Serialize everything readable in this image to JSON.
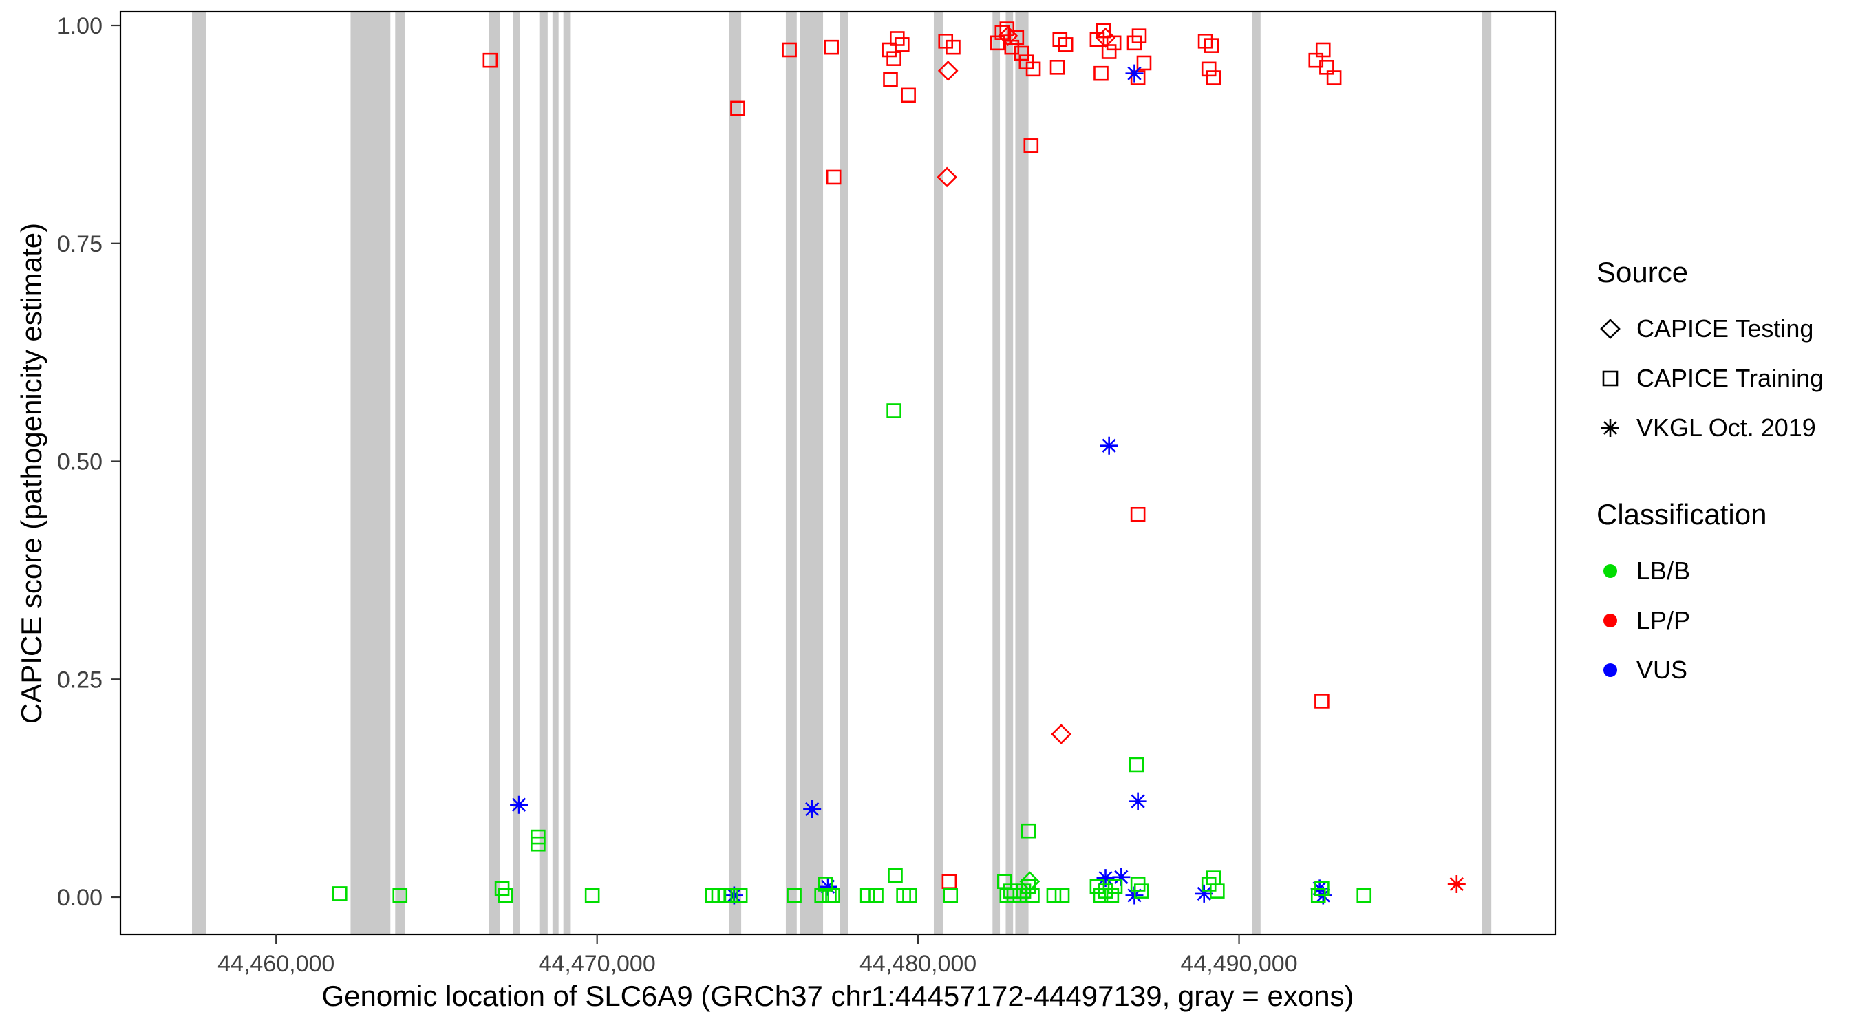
{
  "legend": {
    "source": {
      "title": "Source",
      "items": [
        {
          "label": "CAPICE Testing",
          "shape": "diamond"
        },
        {
          "label": "CAPICE Training",
          "shape": "square"
        },
        {
          "label": "VKGL Oct. 2019",
          "shape": "asterisk"
        }
      ]
    },
    "classification": {
      "title": "Classification",
      "items": [
        {
          "label": "LB/B",
          "color": "#00dd00"
        },
        {
          "label": "LP/P",
          "color": "#ff0000"
        },
        {
          "label": "VUS",
          "color": "#0000ff"
        }
      ]
    }
  },
  "chart_data": {
    "type": "scatter",
    "title": "",
    "xlabel": "Genomic location of SLC6A9 (GRCh37 chr1:44457172-44497139, gray = exons)",
    "ylabel": "CAPICE score (pathogenicity estimate)",
    "xlim": [
      44455150,
      44499850
    ],
    "ylim": [
      0,
      1
    ],
    "x_ticks": [
      {
        "value": 44460000,
        "label": "44,460,000"
      },
      {
        "value": 44470000,
        "label": "44,470,000"
      },
      {
        "value": 44480000,
        "label": "44,480,000"
      },
      {
        "value": 44490000,
        "label": "44,490,000"
      }
    ],
    "y_ticks": [
      {
        "value": 0.0,
        "label": "0.00"
      },
      {
        "value": 0.25,
        "label": "0.25"
      },
      {
        "value": 0.5,
        "label": "0.50"
      },
      {
        "value": 0.75,
        "label": "0.75"
      },
      {
        "value": 1.0,
        "label": "1.00"
      }
    ],
    "exon_color": "#c9c9c9",
    "exons": [
      [
        44457380,
        44457830
      ],
      [
        44462320,
        44463560
      ],
      [
        44463710,
        44464010
      ],
      [
        44466630,
        44466970
      ],
      [
        44467380,
        44467600
      ],
      [
        44468200,
        44468460
      ],
      [
        44468610,
        44468800
      ],
      [
        44468950,
        44469180
      ],
      [
        44474120,
        44474490
      ],
      [
        44475880,
        44476220
      ],
      [
        44476330,
        44477040
      ],
      [
        44477560,
        44477830
      ],
      [
        44480490,
        44480790
      ],
      [
        44482320,
        44482550
      ],
      [
        44482730,
        44482960
      ],
      [
        44483030,
        44483440
      ],
      [
        44490410,
        44490670
      ],
      [
        44497560,
        44497860
      ]
    ],
    "marker_colors": {
      "g": "#00dd00",
      "r": "#ff0000",
      "b": "#0000ff"
    },
    "marker_shapes": {
      "d": "diamond = CAPICE Testing",
      "s": "square = CAPICE Training",
      "a": "asterisk = VKGL Oct. 2019"
    },
    "point_format": [
      "x",
      "y",
      "shape",
      "classification(g=LB/B,r=LP/P,b=VUS)"
    ],
    "points": [
      [
        44466670,
        0.96,
        "s",
        "r"
      ],
      [
        44474380,
        0.905,
        "s",
        "r"
      ],
      [
        44475990,
        0.972,
        "s",
        "r"
      ],
      [
        44477300,
        0.975,
        "s",
        "r"
      ],
      [
        44477375,
        0.826,
        "s",
        "r"
      ],
      [
        44479100,
        0.972,
        "s",
        "r"
      ],
      [
        44479350,
        0.985,
        "s",
        "r"
      ],
      [
        44479500,
        0.978,
        "s",
        "r"
      ],
      [
        44479140,
        0.938,
        "s",
        "r"
      ],
      [
        44479700,
        0.92,
        "s",
        "r"
      ],
      [
        44479250,
        0.962,
        "s",
        "r"
      ],
      [
        44480860,
        0.982,
        "s",
        "r"
      ],
      [
        44481090,
        0.975,
        "s",
        "r"
      ],
      [
        44482470,
        0.98,
        "s",
        "r"
      ],
      [
        44482620,
        0.992,
        "s",
        "r"
      ],
      [
        44482770,
        0.996,
        "s",
        "r"
      ],
      [
        44482920,
        0.975,
        "s",
        "r"
      ],
      [
        44483070,
        0.986,
        "s",
        "r"
      ],
      [
        44483220,
        0.968,
        "s",
        "r"
      ],
      [
        44483370,
        0.958,
        "s",
        "r"
      ],
      [
        44483520,
        0.862,
        "s",
        "r"
      ],
      [
        44483590,
        0.95,
        "s",
        "r"
      ],
      [
        44484340,
        0.952,
        "s",
        "r"
      ],
      [
        44484420,
        0.984,
        "s",
        "r"
      ],
      [
        44484600,
        0.978,
        "s",
        "r"
      ],
      [
        44485580,
        0.984,
        "s",
        "r"
      ],
      [
        44485770,
        0.994,
        "s",
        "r"
      ],
      [
        44485950,
        0.97,
        "s",
        "r"
      ],
      [
        44486100,
        0.98,
        "s",
        "r"
      ],
      [
        44485700,
        0.945,
        "s",
        "r"
      ],
      [
        44486740,
        0.98,
        "s",
        "r"
      ],
      [
        44486890,
        0.988,
        "s",
        "r"
      ],
      [
        44487040,
        0.957,
        "s",
        "r"
      ],
      [
        44486850,
        0.94,
        "s",
        "r"
      ],
      [
        44488950,
        0.982,
        "s",
        "r"
      ],
      [
        44489140,
        0.977,
        "s",
        "r"
      ],
      [
        44489060,
        0.95,
        "s",
        "r"
      ],
      [
        44489210,
        0.94,
        "s",
        "r"
      ],
      [
        44492395,
        0.96,
        "s",
        "r"
      ],
      [
        44492620,
        0.972,
        "s",
        "r"
      ],
      [
        44492730,
        0.952,
        "s",
        "r"
      ],
      [
        44492960,
        0.94,
        "s",
        "r"
      ],
      [
        44486850,
        0.439,
        "s",
        "r"
      ],
      [
        44492580,
        0.225,
        "s",
        "r"
      ],
      [
        44480970,
        0.018,
        "s",
        "r"
      ],
      [
        44480935,
        0.948,
        "d",
        "r"
      ],
      [
        44480900,
        0.826,
        "d",
        "r"
      ],
      [
        44484460,
        0.187,
        "d",
        "r"
      ],
      [
        44482800,
        0.988,
        "d",
        "r"
      ],
      [
        44485840,
        0.986,
        "d",
        "r"
      ],
      [
        44496780,
        0.015,
        "a",
        "r"
      ],
      [
        44486740,
        0.945,
        "a",
        "b"
      ],
      [
        44485950,
        0.518,
        "a",
        "b"
      ],
      [
        44486850,
        0.11,
        "a",
        "b"
      ],
      [
        44467565,
        0.106,
        "a",
        "b"
      ],
      [
        44476700,
        0.101,
        "a",
        "b"
      ],
      [
        44486330,
        0.023,
        "a",
        "b"
      ],
      [
        44485840,
        0.022,
        "a",
        "b"
      ],
      [
        44486740,
        0.002,
        "a",
        "b"
      ],
      [
        44474270,
        0.002,
        "a",
        "b"
      ],
      [
        44477190,
        0.012,
        "a",
        "b"
      ],
      [
        44488910,
        0.004,
        "a",
        "b"
      ],
      [
        44492510,
        0.01,
        "a",
        "b"
      ],
      [
        44492620,
        0.002,
        "a",
        "b"
      ],
      [
        44479250,
        0.558,
        "s",
        "g"
      ],
      [
        44486810,
        0.152,
        "s",
        "g"
      ],
      [
        44468160,
        0.069,
        "s",
        "g"
      ],
      [
        44468160,
        0.061,
        "s",
        "g"
      ],
      [
        44483440,
        0.076,
        "s",
        "g"
      ],
      [
        44461985,
        0.004,
        "s",
        "g"
      ],
      [
        44463860,
        0.002,
        "s",
        "g"
      ],
      [
        44467040,
        0.01,
        "s",
        "g"
      ],
      [
        44467150,
        0.002,
        "s",
        "g"
      ],
      [
        44469850,
        0.002,
        "s",
        "g"
      ],
      [
        44473600,
        0.002,
        "s",
        "g"
      ],
      [
        44473790,
        0.002,
        "s",
        "g"
      ],
      [
        44473980,
        0.002,
        "s",
        "g"
      ],
      [
        44474170,
        0.002,
        "s",
        "g"
      ],
      [
        44474460,
        0.002,
        "s",
        "g"
      ],
      [
        44476140,
        0.002,
        "s",
        "g"
      ],
      [
        44477115,
        0.015,
        "s",
        "g"
      ],
      [
        44477000,
        0.002,
        "s",
        "g"
      ],
      [
        44477230,
        0.002,
        "s",
        "g"
      ],
      [
        44477340,
        0.002,
        "s",
        "g"
      ],
      [
        44478425,
        0.002,
        "s",
        "g"
      ],
      [
        44478690,
        0.002,
        "s",
        "g"
      ],
      [
        44479290,
        0.025,
        "s",
        "g"
      ],
      [
        44479550,
        0.002,
        "s",
        "g"
      ],
      [
        44479740,
        0.002,
        "s",
        "g"
      ],
      [
        44481010,
        0.002,
        "s",
        "g"
      ],
      [
        44482695,
        0.018,
        "s",
        "g"
      ],
      [
        44482770,
        0.002,
        "s",
        "g"
      ],
      [
        44482880,
        0.007,
        "s",
        "g"
      ],
      [
        44482990,
        0.002,
        "s",
        "g"
      ],
      [
        44483180,
        0.002,
        "s",
        "g"
      ],
      [
        44483290,
        0.007,
        "s",
        "g"
      ],
      [
        44483440,
        0.012,
        "s",
        "g"
      ],
      [
        44483555,
        0.002,
        "s",
        "g"
      ],
      [
        44484230,
        0.002,
        "s",
        "g"
      ],
      [
        44484490,
        0.002,
        "s",
        "g"
      ],
      [
        44485580,
        0.012,
        "s",
        "g"
      ],
      [
        44485690,
        0.002,
        "s",
        "g"
      ],
      [
        44485840,
        0.007,
        "s",
        "g"
      ],
      [
        44486030,
        0.002,
        "s",
        "g"
      ],
      [
        44486140,
        0.012,
        "s",
        "g"
      ],
      [
        44486850,
        0.015,
        "s",
        "g"
      ],
      [
        44486960,
        0.007,
        "s",
        "g"
      ],
      [
        44489060,
        0.015,
        "s",
        "g"
      ],
      [
        44489210,
        0.022,
        "s",
        "g"
      ],
      [
        44489320,
        0.007,
        "s",
        "g"
      ],
      [
        44492470,
        0.002,
        "s",
        "g"
      ],
      [
        44492580,
        0.01,
        "s",
        "g"
      ],
      [
        44493895,
        0.002,
        "s",
        "g"
      ],
      [
        44483480,
        0.018,
        "d",
        "g"
      ]
    ]
  }
}
